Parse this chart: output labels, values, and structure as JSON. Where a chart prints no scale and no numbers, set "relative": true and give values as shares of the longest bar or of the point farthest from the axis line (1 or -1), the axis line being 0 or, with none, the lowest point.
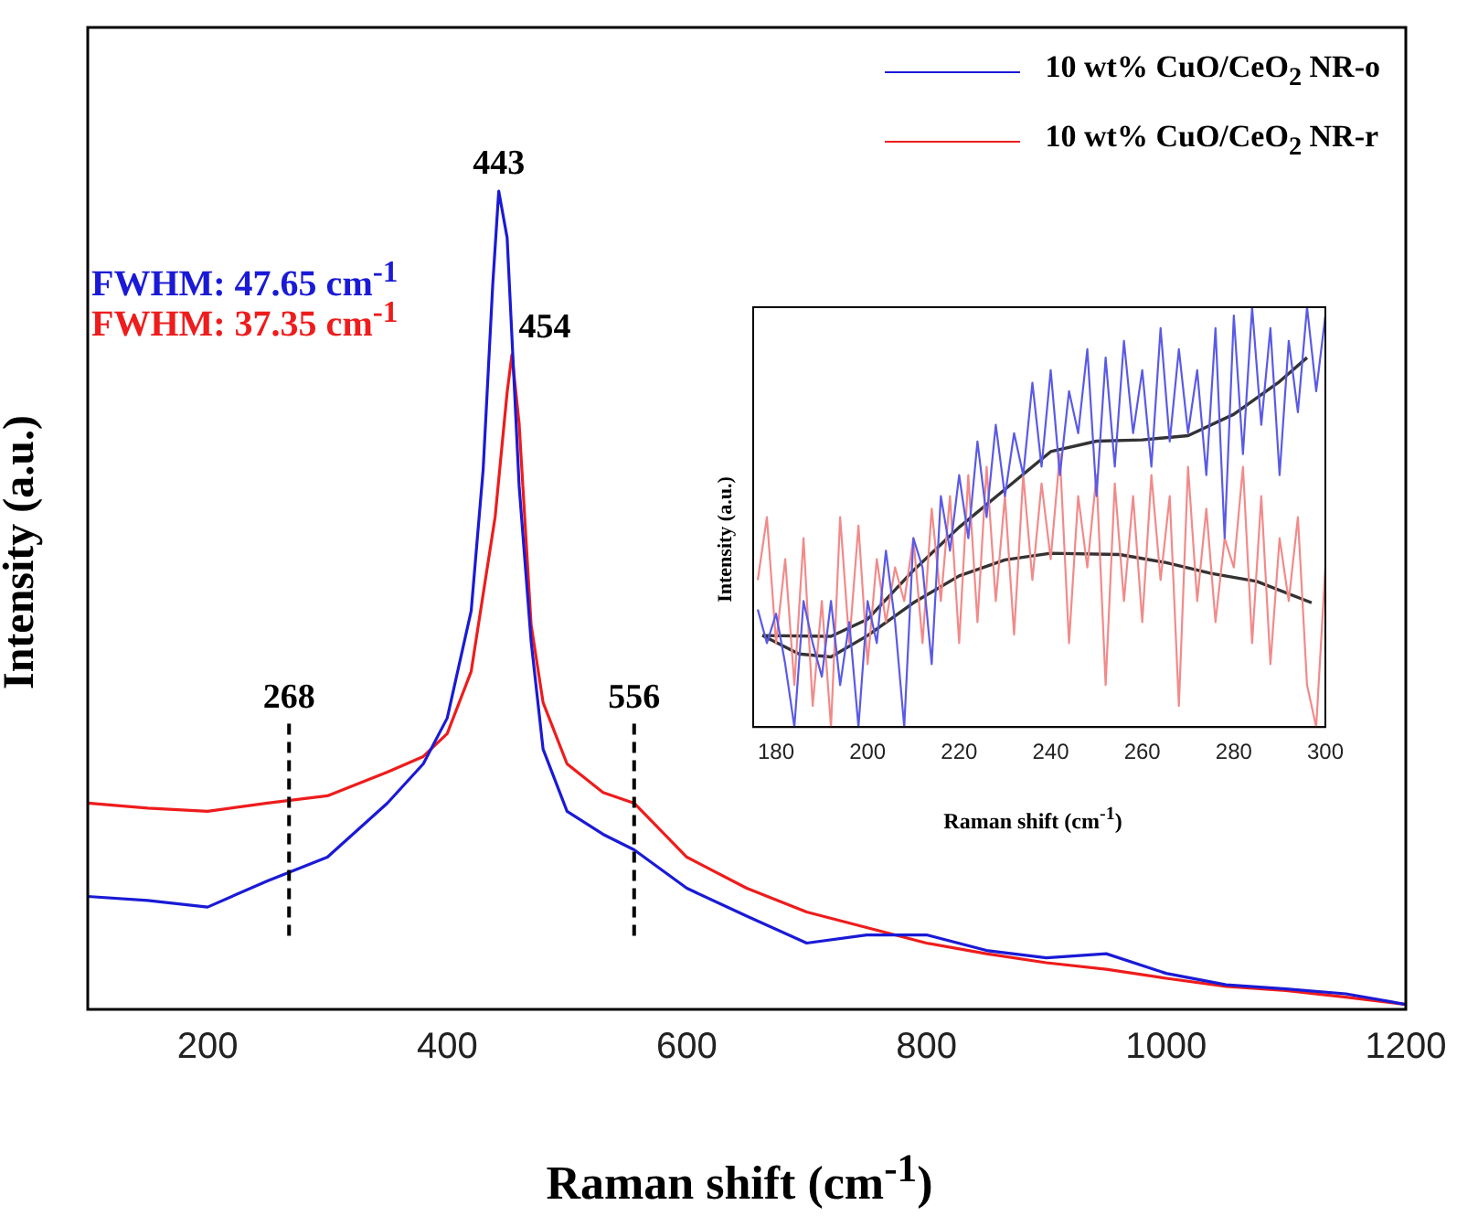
{
  "chart_data": [
    {
      "type": "line",
      "xlabel": "Raman shift (cm$^{-1}$)",
      "ylabel": "Intensity (a.u.)",
      "relative": true,
      "xlim": [
        100,
        1200
      ],
      "xticks": [
        200,
        400,
        600,
        800,
        1000,
        1200
      ],
      "grid": false,
      "legend": "top right",
      "marker": "none",
      "line_style": "solid",
      "series": [
        {
          "name": "10 wt% CuO/CeO$_{2}$ NR-o",
          "color": "#1a1ad6",
          "x": [
            100,
            150,
            200,
            250,
            300,
            350,
            380,
            400,
            420,
            430,
            438,
            443,
            450,
            460,
            470,
            480,
            500,
            530,
            556,
            600,
            650,
            700,
            750,
            800,
            850,
            900,
            950,
            1000,
            1050,
            1100,
            1150,
            1200
          ],
          "values": [
            0.138,
            0.133,
            0.125,
            0.157,
            0.186,
            0.252,
            0.3,
            0.356,
            0.487,
            0.66,
            0.886,
            1.0,
            0.943,
            0.64,
            0.45,
            0.318,
            0.242,
            0.214,
            0.195,
            0.148,
            0.114,
            0.081,
            0.091,
            0.091,
            0.072,
            0.063,
            0.068,
            0.044,
            0.03,
            0.025,
            0.019,
            0.006
          ]
        },
        {
          "name": "10 wt% CuO/CeO$_{2}$ NR-r",
          "color": "#ee1c1c",
          "x": [
            100,
            150,
            200,
            250,
            300,
            350,
            380,
            400,
            420,
            440,
            450,
            454,
            460,
            470,
            480,
            500,
            530,
            556,
            600,
            650,
            700,
            750,
            800,
            850,
            900,
            950,
            1000,
            1050,
            1100,
            1150,
            1200
          ],
          "values": [
            0.252,
            0.246,
            0.242,
            0.252,
            0.261,
            0.29,
            0.309,
            0.337,
            0.413,
            0.602,
            0.754,
            0.8,
            0.716,
            0.47,
            0.375,
            0.3,
            0.265,
            0.252,
            0.186,
            0.148,
            0.119,
            0.1,
            0.081,
            0.068,
            0.057,
            0.049,
            0.038,
            0.028,
            0.023,
            0.015,
            0.006
          ]
        }
      ],
      "ref_lines": [
        {
          "axis": "x",
          "value": 268,
          "label": "268",
          "color": "#000000",
          "line_style": "dashed"
        },
        {
          "axis": "x",
          "value": 556,
          "label": "556",
          "color": "#000000",
          "line_style": "dashed"
        }
      ],
      "annotations": [
        {
          "text": "443",
          "x": 443,
          "y": 1.0
        },
        {
          "text": "454",
          "x": 454,
          "y": 0.8
        },
        "FWHM: 47.65 cm$^{-1}$",
        "FWHM: 37.35 cm$^{-1}$"
      ]
    },
    {
      "type": "line",
      "xlabel": "Raman shift (cm$^{-1}$)",
      "ylabel": "Intensity (a.u.)",
      "relative": true,
      "xlim": [
        175,
        300
      ],
      "xticks": [
        180,
        200,
        220,
        240,
        260,
        280,
        300
      ],
      "grid": false,
      "marker": "none",
      "line_style": "solid",
      "series": [
        {
          "color": "#5a5ae6",
          "x": [
            176,
            178,
            180,
            182,
            184,
            186,
            188,
            190,
            192,
            194,
            196,
            198,
            200,
            202,
            204,
            206,
            208,
            210,
            212,
            214,
            216,
            218,
            220,
            222,
            224,
            226,
            228,
            230,
            232,
            234,
            236,
            238,
            240,
            242,
            244,
            246,
            248,
            250,
            252,
            254,
            256,
            258,
            260,
            262,
            264,
            266,
            268,
            270,
            272,
            274,
            276,
            278,
            280,
            282,
            284,
            286,
            288,
            290,
            292,
            294,
            296,
            298,
            300
          ],
          "values": [
            0.28,
            0.2,
            0.27,
            0.15,
            0.0,
            0.3,
            0.2,
            0.12,
            0.3,
            0.1,
            0.25,
            0.0,
            0.3,
            0.2,
            0.42,
            0.25,
            0.0,
            0.45,
            0.38,
            0.15,
            0.55,
            0.42,
            0.6,
            0.45,
            0.68,
            0.5,
            0.72,
            0.55,
            0.7,
            0.6,
            0.82,
            0.62,
            0.85,
            0.6,
            0.8,
            0.7,
            0.9,
            0.55,
            0.88,
            0.62,
            0.92,
            0.7,
            0.85,
            0.62,
            0.95,
            0.68,
            0.9,
            0.7,
            0.85,
            0.6,
            0.95,
            0.45,
            0.98,
            0.65,
            1.0,
            0.72,
            0.95,
            0.6,
            0.92,
            0.75,
            1.0,
            0.8,
            0.98
          ]
        },
        {
          "color": "#f28a8a",
          "x": [
            176,
            178,
            180,
            182,
            184,
            186,
            188,
            190,
            192,
            194,
            196,
            198,
            200,
            202,
            204,
            206,
            208,
            210,
            212,
            214,
            216,
            218,
            220,
            222,
            224,
            226,
            228,
            230,
            232,
            234,
            236,
            238,
            240,
            242,
            244,
            246,
            248,
            250,
            252,
            254,
            256,
            258,
            260,
            262,
            264,
            266,
            268,
            270,
            272,
            274,
            276,
            278,
            280,
            282,
            284,
            286,
            288,
            290,
            292,
            294,
            296,
            298,
            300
          ],
          "values": [
            0.35,
            0.5,
            0.2,
            0.4,
            0.1,
            0.45,
            0.05,
            0.3,
            0.0,
            0.5,
            0.2,
            0.48,
            0.15,
            0.4,
            0.25,
            0.38,
            0.3,
            0.45,
            0.2,
            0.52,
            0.3,
            0.55,
            0.2,
            0.6,
            0.25,
            0.62,
            0.3,
            0.55,
            0.22,
            0.6,
            0.35,
            0.58,
            0.4,
            0.65,
            0.2,
            0.55,
            0.38,
            0.6,
            0.1,
            0.58,
            0.3,
            0.55,
            0.25,
            0.6,
            0.35,
            0.55,
            0.05,
            0.62,
            0.3,
            0.52,
            0.25,
            0.45,
            0.38,
            0.62,
            0.2,
            0.55,
            0.15,
            0.45,
            0.3,
            0.5,
            0.1,
            0.0,
            0.38
          ]
        },
        {
          "type": "line",
          "color": "#333333",
          "x": [
            177,
            192,
            200,
            210,
            220,
            230,
            240,
            250,
            260,
            270,
            280,
            290,
            296
          ],
          "values": [
            0.218,
            0.216,
            0.257,
            0.373,
            0.476,
            0.566,
            0.656,
            0.681,
            0.684,
            0.694,
            0.745,
            0.823,
            0.88
          ]
        },
        {
          "type": "line",
          "color": "#333333",
          "x": [
            177,
            185,
            192,
            200,
            210,
            220,
            230,
            240,
            255,
            265,
            275,
            285,
            297
          ],
          "values": [
            0.218,
            0.174,
            0.167,
            0.218,
            0.296,
            0.36,
            0.398,
            0.414,
            0.411,
            0.392,
            0.366,
            0.347,
            0.296
          ]
        }
      ]
    }
  ]
}
